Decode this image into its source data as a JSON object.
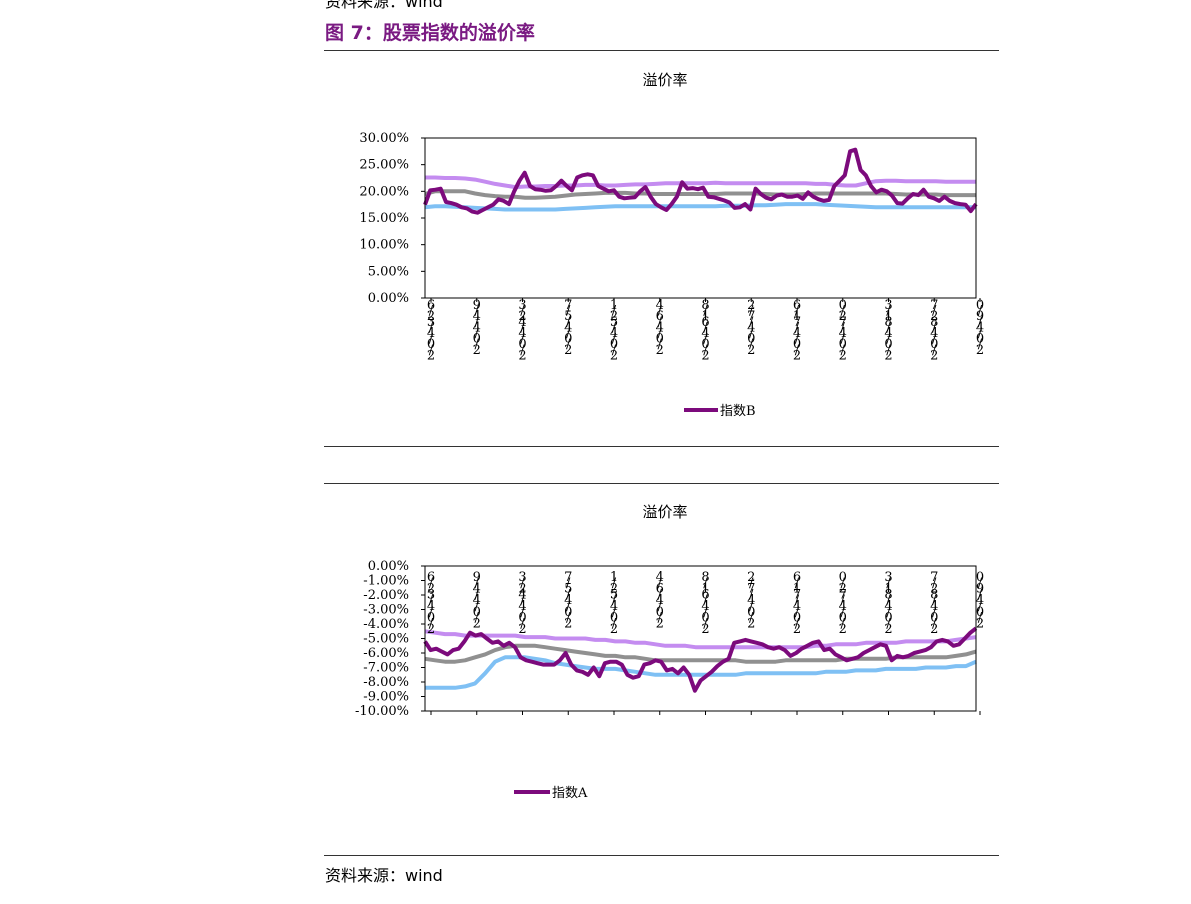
{
  "header": {
    "prev_source": "资料来源：wind",
    "figure_title": "图 7：股票指数的溢价率"
  },
  "footer": {
    "source": "资料来源：wind"
  },
  "colors": {
    "purple": "#7c0a7c",
    "lavender": "#c48cf0",
    "gray": "#909090",
    "lightblue": "#7fc0f4"
  },
  "chart_data": [
    {
      "type": "line",
      "title": "溢价率",
      "ylim": [
        0,
        30
      ],
      "yticks": [
        "0.00%",
        "5.00%",
        "10.00%",
        "15.00%",
        "20.00%",
        "25.00%",
        "30.00%"
      ],
      "xticks": [
        "6/23/4/0/2",
        "9/4/4/0/2",
        "3/24/4/0/2",
        "7/5/4/0/2",
        "1/25/4/0/2",
        "4/6/4/0/2",
        "8/16/4/0/2",
        "2/7/4/0/2",
        "6/17/4/0/2",
        "0/27/4/0/2",
        "3/18/4/0/2",
        "7/28/4/0/2",
        "0/9/4/0/2"
      ],
      "grid": false,
      "legend": "bottom",
      "series": [
        {
          "name": "指数B",
          "color": "#7c0a7c",
          "width": 4,
          "values": [
            17.5,
            20.2,
            20.3,
            20.5,
            18,
            17.8,
            17.5,
            17,
            16.8,
            16.2,
            16,
            16.5,
            17,
            17.5,
            18.5,
            18.2,
            17.6,
            20,
            22,
            23.5,
            21,
            20.4,
            20.3,
            20.1,
            20.2,
            21,
            22,
            21,
            20.2,
            22.6,
            23,
            23.2,
            23,
            21,
            20.5,
            20,
            20.2,
            19,
            18.7,
            18.8,
            18.9,
            20,
            20.8,
            19,
            17.6,
            17,
            16.5,
            17.6,
            19,
            21.7,
            20.5,
            20.6,
            20.4,
            20.7,
            19,
            18.9,
            18.6,
            18.3,
            17.9,
            16.9,
            17,
            17.6,
            16.6,
            20.5,
            19.5,
            18.8,
            18.5,
            19.2,
            19.4,
            19,
            19,
            19.2,
            18.6,
            19.8,
            19,
            18.5,
            18.2,
            18.4,
            21,
            22,
            23,
            27.5,
            27.8,
            24,
            23,
            21,
            19.8,
            20.3,
            20,
            19.2,
            17.8,
            17.7,
            18.7,
            19.5,
            19.3,
            20.3,
            19,
            18.7,
            18.2,
            19,
            18.2,
            17.8,
            17.6,
            17.5,
            16.3,
            17.6
          ]
        },
        {
          "name": "",
          "color": "#c48cf0",
          "width": 4,
          "values": [
            22.6,
            22.6,
            22.5,
            22.5,
            22.4,
            22.2,
            21.8,
            21.4,
            21.1,
            20.8,
            20.9,
            20.9,
            21,
            21,
            21.1,
            21.1,
            21.2,
            21.2,
            21.1,
            21.1,
            21.2,
            21.3,
            21.3,
            21.4,
            21.5,
            21.5,
            21.5,
            21.5,
            21.5,
            21.6,
            21.5,
            21.5,
            21.5,
            21.5,
            21.5,
            21.5,
            21.5,
            21.5,
            21.5,
            21.4,
            21.4,
            21.2,
            21.1,
            21.1,
            21.5,
            21.9,
            22,
            22,
            21.9,
            21.9,
            21.9,
            21.9,
            21.8,
            21.8,
            21.8,
            21.8
          ]
        },
        {
          "name": "",
          "color": "#909090",
          "width": 4,
          "values": [
            19.5,
            20,
            20,
            20,
            20,
            19.6,
            19.3,
            19.1,
            19,
            19,
            18.8,
            18.8,
            18.9,
            19,
            19.2,
            19.4,
            19.5,
            19.6,
            19.7,
            19.7,
            19.7,
            19.6,
            19.6,
            19.5,
            19.5,
            19.5,
            19.5,
            19.5,
            19.5,
            19.5,
            19.6,
            19.6,
            19.6,
            19.6,
            19.5,
            19.4,
            19.4,
            19.4,
            19.5,
            19.6,
            19.6,
            19.6,
            19.6,
            19.6,
            19.6,
            19.6,
            19.6,
            19.5,
            19.4,
            19.4,
            19.4,
            19.4,
            19.3,
            19.3,
            19.3,
            19.3
          ]
        },
        {
          "name": "",
          "color": "#7fc0f4",
          "width": 4,
          "values": [
            17,
            17.2,
            17.2,
            17.1,
            17,
            16.9,
            16.8,
            16.7,
            16.6,
            16.6,
            16.6,
            16.6,
            16.6,
            16.6,
            16.7,
            16.8,
            16.9,
            17,
            17.1,
            17.2,
            17.2,
            17.2,
            17.2,
            17.2,
            17.2,
            17.2,
            17.2,
            17.2,
            17.2,
            17.2,
            17.3,
            17.3,
            17.3,
            17.4,
            17.4,
            17.5,
            17.6,
            17.6,
            17.6,
            17.6,
            17.5,
            17.4,
            17.3,
            17.2,
            17.1,
            17,
            17,
            17,
            17,
            17,
            17,
            17,
            17,
            17,
            17,
            17
          ]
        }
      ]
    },
    {
      "type": "line",
      "title": "溢价率",
      "ylim": [
        -10,
        0
      ],
      "yticks": [
        "-10.00%",
        "-9.00%",
        "-8.00%",
        "-7.00%",
        "-6.00%",
        "-5.00%",
        "-4.00%",
        "-3.00%",
        "-2.00%",
        "-1.00%",
        "0.00%"
      ],
      "xticks": [
        "6/23/4/0/2",
        "9/4/4/0/2",
        "3/24/4/0/2",
        "7/5/4/0/2",
        "1/25/4/0/2",
        "4/6/4/0/2",
        "8/16/4/0/2",
        "2/7/4/0/2",
        "6/17/4/0/2",
        "0/27/4/0/2",
        "3/18/4/0/2",
        "7/28/4/0/2",
        "0/9/4/0/2"
      ],
      "grid": false,
      "legend": "bottom",
      "series": [
        {
          "name": "指数A",
          "color": "#7c0a7c",
          "width": 4,
          "values": [
            -5.2,
            -5.8,
            -5.7,
            -5.9,
            -6.1,
            -5.8,
            -5.7,
            -5.2,
            -4.6,
            -4.8,
            -4.7,
            -5,
            -5.3,
            -5.2,
            -5.5,
            -5.3,
            -5.6,
            -6.3,
            -6.5,
            -6.6,
            -6.7,
            -6.8,
            -6.8,
            -6.8,
            -6.5,
            -6,
            -6.8,
            -7.2,
            -7.3,
            -7.5,
            -7,
            -7.6,
            -6.7,
            -6.6,
            -6.6,
            -6.8,
            -7.5,
            -7.7,
            -7.6,
            -6.8,
            -6.7,
            -6.5,
            -6.6,
            -7.2,
            -7.1,
            -7.4,
            -7,
            -7.5,
            -8.6,
            -7.9,
            -7.6,
            -7.3,
            -6.9,
            -6.6,
            -6.4,
            -5.3,
            -5.2,
            -5.1,
            -5.2,
            -5.3,
            -5.4,
            -5.6,
            -5.7,
            -5.6,
            -5.8,
            -6.2,
            -6,
            -5.7,
            -5.5,
            -5.3,
            -5.2,
            -5.8,
            -5.7,
            -6.1,
            -6.3,
            -6.5,
            -6.4,
            -6.3,
            -6,
            -5.8,
            -5.6,
            -5.4,
            -5.5,
            -6.5,
            -6.2,
            -6.3,
            -6.2,
            -6,
            -5.9,
            -5.8,
            -5.6,
            -5.2,
            -5.1,
            -5.2,
            -5.5,
            -5.4,
            -5.0,
            -4.6,
            -4.3
          ]
        },
        {
          "name": "",
          "color": "#c48cf0",
          "width": 4,
          "values": [
            -4.5,
            -4.6,
            -4.7,
            -4.7,
            -4.8,
            -4.8,
            -4.8,
            -4.8,
            -4.8,
            -4.8,
            -4.9,
            -4.9,
            -4.9,
            -5,
            -5,
            -5,
            -5,
            -5.1,
            -5.1,
            -5.2,
            -5.2,
            -5.3,
            -5.3,
            -5.4,
            -5.5,
            -5.5,
            -5.5,
            -5.6,
            -5.6,
            -5.6,
            -5.6,
            -5.6,
            -5.6,
            -5.6,
            -5.6,
            -5.6,
            -5.6,
            -5.6,
            -5.6,
            -5.5,
            -5.5,
            -5.4,
            -5.4,
            -5.4,
            -5.3,
            -5.3,
            -5.3,
            -5.3,
            -5.2,
            -5.2,
            -5.2,
            -5.2,
            -5.2,
            -5.1,
            -5.0,
            -4.9
          ]
        },
        {
          "name": "",
          "color": "#909090",
          "width": 4,
          "values": [
            -6.4,
            -6.5,
            -6.6,
            -6.6,
            -6.5,
            -6.3,
            -6.1,
            -5.8,
            -5.6,
            -5.5,
            -5.5,
            -5.5,
            -5.6,
            -5.7,
            -5.8,
            -5.9,
            -6,
            -6.1,
            -6.2,
            -6.2,
            -6.3,
            -6.3,
            -6.4,
            -6.5,
            -6.5,
            -6.5,
            -6.5,
            -6.5,
            -6.5,
            -6.5,
            -6.5,
            -6.5,
            -6.6,
            -6.6,
            -6.6,
            -6.6,
            -6.5,
            -6.5,
            -6.5,
            -6.5,
            -6.5,
            -6.5,
            -6.4,
            -6.4,
            -6.4,
            -6.4,
            -6.4,
            -6.3,
            -6.3,
            -6.3,
            -6.3,
            -6.3,
            -6.3,
            -6.2,
            -6.1,
            -5.9
          ]
        },
        {
          "name": "",
          "color": "#7fc0f4",
          "width": 4,
          "values": [
            -8.4,
            -8.4,
            -8.4,
            -8.4,
            -8.3,
            -8.1,
            -7.4,
            -6.6,
            -6.3,
            -6.3,
            -6.3,
            -6.4,
            -6.5,
            -6.7,
            -6.8,
            -6.9,
            -7,
            -7.1,
            -7.1,
            -7.1,
            -7.2,
            -7.3,
            -7.4,
            -7.5,
            -7.5,
            -7.5,
            -7.5,
            -7.5,
            -7.5,
            -7.5,
            -7.5,
            -7.5,
            -7.4,
            -7.4,
            -7.4,
            -7.4,
            -7.4,
            -7.4,
            -7.4,
            -7.4,
            -7.3,
            -7.3,
            -7.3,
            -7.2,
            -7.2,
            -7.2,
            -7.1,
            -7.1,
            -7.1,
            -7.1,
            -7,
            -7,
            -7,
            -6.9,
            -6.9,
            -6.6
          ]
        }
      ]
    }
  ]
}
